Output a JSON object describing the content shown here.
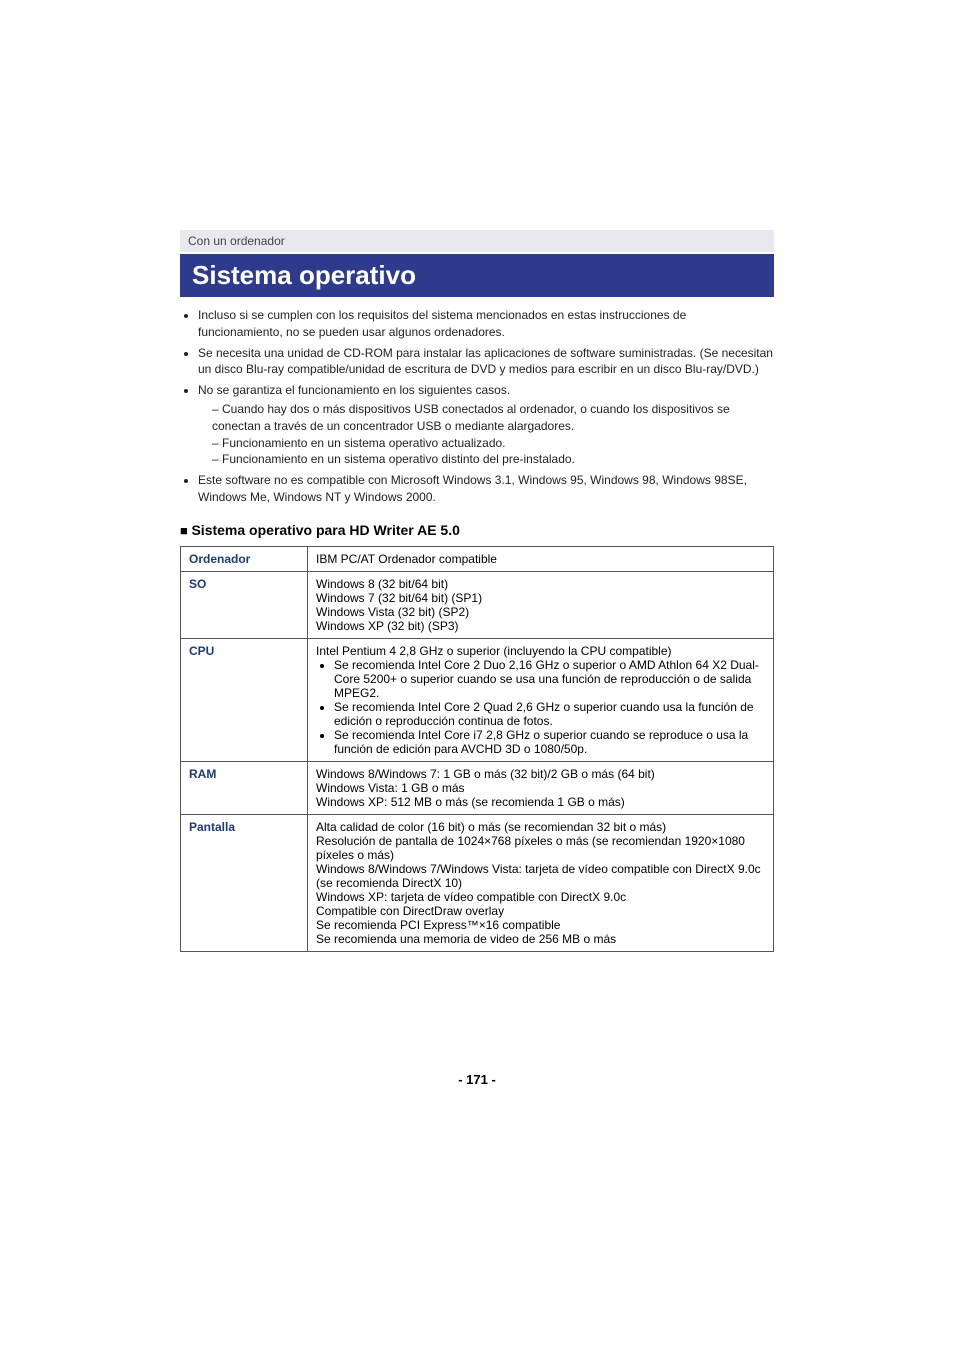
{
  "breadcrumb": "Con un ordenador",
  "title": "Sistema operativo",
  "intro_bullets": [
    {
      "text": "Incluso si se cumplen con los requisitos del sistema mencionados en estas instrucciones de funcionamiento, no se pueden usar algunos ordenadores."
    },
    {
      "text": "Se necesita una unidad de CD-ROM para instalar las aplicaciones de software suministradas. (Se necesitan un disco Blu-ray compatible/unidad de escritura de DVD y medios para escribir en un disco Blu-ray/DVD.)"
    },
    {
      "text": "No se garantiza el funcionamiento en los siguientes casos.",
      "subs": [
        "Cuando hay dos o más dispositivos USB conectados al ordenador, o cuando los dispositivos se conectan a través de un concentrador USB o mediante alargadores.",
        "Funcionamiento en un sistema operativo actualizado.",
        "Funcionamiento en un sistema operativo distinto del pre-instalado."
      ]
    },
    {
      "text": "Este software no es compatible con Microsoft Windows 3.1, Windows 95, Windows 98, Windows 98SE, Windows Me, Windows NT y Windows 2000."
    }
  ],
  "section_heading": "Sistema operativo para HD Writer AE 5.0",
  "table": {
    "rows": [
      {
        "label": "Ordenador",
        "lines": [
          "IBM PC/AT Ordenador compatible"
        ]
      },
      {
        "label": "SO",
        "lines": [
          "Windows 8 (32 bit/64 bit)",
          "Windows 7 (32 bit/64 bit) (SP1)",
          "Windows Vista (32 bit) (SP2)",
          "Windows XP (32 bit) (SP3)"
        ]
      },
      {
        "label": "CPU",
        "lead": "Intel Pentium 4 2,8 GHz o superior (incluyendo la CPU compatible)",
        "bullets": [
          "Se recomienda Intel Core 2 Duo 2,16 GHz o superior o AMD Athlon 64 X2 Dual-Core 5200+ o superior cuando se usa una función de reproducción o de salida MPEG2.",
          "Se recomienda Intel Core 2 Quad 2,6 GHz o superior cuando usa la función de edición o reproducción continua de fotos.",
          "Se recomienda Intel Core i7 2,8 GHz o superior cuando se reproduce o usa la función de edición para AVCHD 3D o 1080/50p."
        ]
      },
      {
        "label": "RAM",
        "lines": [
          "Windows 8/Windows 7: 1 GB o más (32 bit)/2 GB o más (64 bit)",
          "Windows Vista: 1 GB o más",
          "Windows XP: 512 MB o más (se recomienda 1 GB o más)"
        ]
      },
      {
        "label": "Pantalla",
        "lines": [
          "Alta calidad de color (16 bit) o más (se recomiendan 32 bit o más)",
          "Resolución de pantalla de 1024×768 píxeles o más (se recomiendan 1920×1080 píxeles o más)",
          "Windows 8/Windows 7/Windows Vista: tarjeta de vídeo compatible con DirectX 9.0c (se recomienda DirectX 10)",
          "Windows XP: tarjeta de vídeo compatible con DirectX 9.0c",
          "Compatible con DirectDraw overlay",
          "Se recomienda PCI Express™×16 compatible",
          "Se recomienda una memoria de video de 256 MB o más"
        ]
      }
    ]
  },
  "page_number": "- 171 -",
  "colors": {
    "title_bg": "#2e3a8c",
    "title_fg": "#ffffff",
    "breadcrumb_bg": "#e8e8ee",
    "th_color": "#1d3a7c",
    "border": "#555555"
  }
}
